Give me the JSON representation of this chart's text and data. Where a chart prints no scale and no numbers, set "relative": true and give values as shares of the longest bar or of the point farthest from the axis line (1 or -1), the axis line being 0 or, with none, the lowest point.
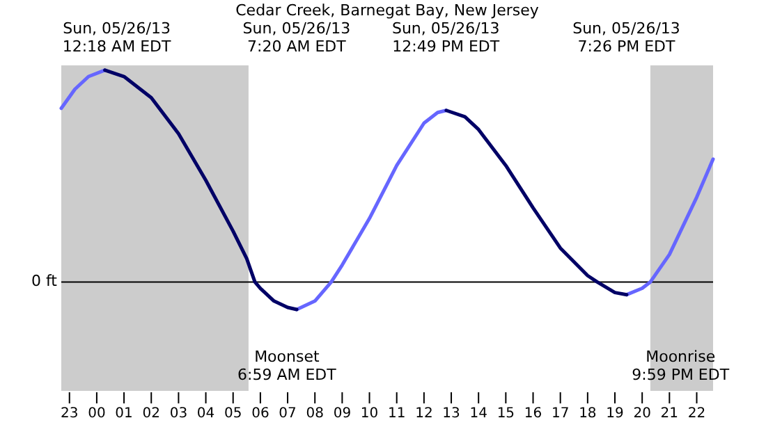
{
  "chart_data": {
    "type": "line",
    "title": "Cedar Creek, Barnegat Bay, New Jersey",
    "relative": true,
    "x": [
      "--05-25T22:42",
      "--05-25T23:12",
      "--05-25T23:42",
      "--05-26T00:18",
      "--05-26T01:00",
      "--05-26T02:00",
      "--05-26T03:00",
      "--05-26T04:00",
      "--05-26T05:00",
      "--05-26T05:30",
      "--05-26T05:48",
      "--05-26T06:00",
      "--05-26T06:30",
      "--05-26T07:00",
      "--05-26T07:20",
      "--05-26T08:00",
      "--05-26T08:36",
      "--05-26T09:00",
      "--05-26T10:00",
      "--05-26T11:00",
      "--05-26T12:00",
      "--05-26T12:30",
      "--05-26T12:49",
      "--05-26T13:30",
      "--05-26T14:00",
      "--05-26T15:00",
      "--05-26T16:00",
      "--05-26T17:00",
      "--05-26T18:00",
      "--05-26T18:21",
      "--05-26T19:00",
      "--05-26T19:26",
      "--05-26T20:00",
      "--05-26T20:18",
      "--05-26T21:00",
      "--05-26T22:00",
      "--05-26T22:36"
    ],
    "series": [
      {
        "color": "#6666ff",
        "values": [
          0.82,
          0.91,
          0.97,
          1.0,
          null,
          null,
          null,
          null,
          null,
          null,
          null,
          null,
          null,
          null,
          -0.13,
          -0.09,
          0,
          0.08,
          0.3,
          0.55,
          0.75,
          0.8,
          0.81,
          null,
          null,
          null,
          null,
          null,
          null,
          null,
          null,
          -0.06,
          -0.03,
          0,
          0.13,
          0.4,
          0.58
        ]
      },
      {
        "color": "#000066",
        "values": [
          null,
          null,
          null,
          1.0,
          0.97,
          0.87,
          0.7,
          0.48,
          0.24,
          0.11,
          0,
          -0.03,
          -0.09,
          -0.12,
          -0.13,
          null,
          null,
          null,
          null,
          null,
          null,
          null,
          0.81,
          0.78,
          0.72,
          0.55,
          0.35,
          0.16,
          0.03,
          0,
          -0.05,
          -0.06,
          null,
          null,
          null,
          null,
          null
        ]
      }
    ],
    "xlim": [
      "--05-25T22:42",
      "--05-26T22:36"
    ],
    "xticks": [
      {
        "value": "--05-25T23:00",
        "label": "23"
      },
      {
        "value": "--05-26T00:00",
        "label": "00"
      },
      {
        "value": "--05-26T01:00",
        "label": "01"
      },
      {
        "value": "--05-26T02:00",
        "label": "02"
      },
      {
        "value": "--05-26T03:00",
        "label": "03"
      },
      {
        "value": "--05-26T04:00",
        "label": "04"
      },
      {
        "value": "--05-26T05:00",
        "label": "05"
      },
      {
        "value": "--05-26T06:00",
        "label": "06"
      },
      {
        "value": "--05-26T07:00",
        "label": "07"
      },
      {
        "value": "--05-26T08:00",
        "label": "08"
      },
      {
        "value": "--05-26T09:00",
        "label": "09"
      },
      {
        "value": "--05-26T10:00",
        "label": "10"
      },
      {
        "value": "--05-26T11:00",
        "label": "11"
      },
      {
        "value": "--05-26T12:00",
        "label": "12"
      },
      {
        "value": "--05-26T13:00",
        "label": "13"
      },
      {
        "value": "--05-26T14:00",
        "label": "14"
      },
      {
        "value": "--05-26T15:00",
        "label": "15"
      },
      {
        "value": "--05-26T16:00",
        "label": "16"
      },
      {
        "value": "--05-26T17:00",
        "label": "17"
      },
      {
        "value": "--05-26T18:00",
        "label": "18"
      },
      {
        "value": "--05-26T19:00",
        "label": "19"
      },
      {
        "value": "--05-26T20:00",
        "label": "20"
      },
      {
        "value": "--05-26T21:00",
        "label": "21"
      },
      {
        "value": "--05-26T22:00",
        "label": "22"
      }
    ],
    "bands": [
      {
        "axis": "x",
        "from": "--05-25T22:42",
        "to": "--05-26T05:34",
        "color": "#cccccc"
      },
      {
        "axis": "x",
        "from": "--05-26T20:18",
        "to": "--05-26T22:36",
        "color": "#cccccc"
      }
    ],
    "ref_lines": [
      {
        "axis": "y",
        "value": 0,
        "label": "0 ft",
        "color": "#000000"
      }
    ],
    "annotations": [
      "Sun, 05/26/13\n12:18 AM EDT",
      "Sun, 05/26/13\n7:20 AM EDT",
      "Sun, 05/26/13\n12:49 PM EDT",
      "Sun, 05/26/13\n7:26 PM EDT",
      "Moonset\n6:59 AM EDT",
      "Moonrise\n9:59 PM EDT"
    ],
    "grid": false
  }
}
